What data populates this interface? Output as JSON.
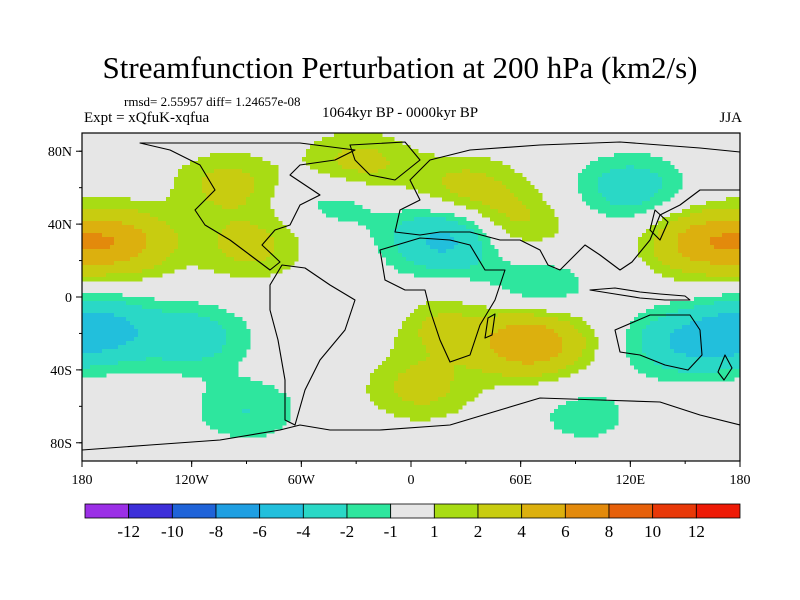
{
  "title": "Streamfunction Perturbation at 200 hPa (km2/s)",
  "stats": "rmsd= 2.55957 diff= 1.24657e-08",
  "experiment": "Expt = xQfuK-xqfua",
  "period": "1064kyr BP - 0000kyr BP",
  "season": "JJA",
  "lat_labels": [
    "80N",
    "40N",
    "0",
    "40S",
    "80S"
  ],
  "lon_labels": [
    "180",
    "120W",
    "60W",
    "0",
    "60E",
    "120E",
    "180"
  ],
  "colorbar": {
    "labels": [
      "-12",
      "-10",
      "-8",
      "-6",
      "-4",
      "-2",
      "-1",
      "1",
      "2",
      "4",
      "6",
      "8",
      "10",
      "12"
    ],
    "colors": [
      "#9b2fe6",
      "#3d2fd9",
      "#1f63d8",
      "#1f9fe2",
      "#22bfdc",
      "#2ad8c6",
      "#2ee69e",
      "#e6e6e6",
      "#a8dc14",
      "#c8cc10",
      "#dcb00e",
      "#e38a0c",
      "#e6600a",
      "#e83808",
      "#ee1a06"
    ]
  },
  "field_blobs": [
    {
      "lon": -160,
      "lat": 30,
      "value": 5
    },
    {
      "lon": -172,
      "lat": -18,
      "value": -5
    },
    {
      "lon": -100,
      "lat": 62,
      "value": 2.5
    },
    {
      "lon": -30,
      "lat": 72,
      "value": 3
    },
    {
      "lon": -88,
      "lat": 28,
      "value": 2.5
    },
    {
      "lon": -120,
      "lat": -22,
      "value": -3
    },
    {
      "lon": -40,
      "lat": 55,
      "value": -2
    },
    {
      "lon": 20,
      "lat": 32,
      "value": -5
    },
    {
      "lon": 55,
      "lat": 40,
      "value": 2.5
    },
    {
      "lon": 10,
      "lat": -15,
      "value": 2.5
    },
    {
      "lon": 65,
      "lat": -25,
      "value": 6
    },
    {
      "lon": 120,
      "lat": 60,
      "value": -3
    },
    {
      "lon": 160,
      "lat": 30,
      "value": 5
    },
    {
      "lon": 150,
      "lat": -25,
      "value": -4
    },
    {
      "lon": -90,
      "lat": -62,
      "value": -2
    },
    {
      "lon": 95,
      "lat": -65,
      "value": -1.5
    },
    {
      "lon": 5,
      "lat": -50,
      "value": 2.5
    },
    {
      "lon": -20,
      "lat": -8,
      "value": -1.5
    },
    {
      "lon": 70,
      "lat": 5,
      "value": -2
    },
    {
      "lon": 30,
      "lat": 60,
      "value": 2.5
    }
  ]
}
